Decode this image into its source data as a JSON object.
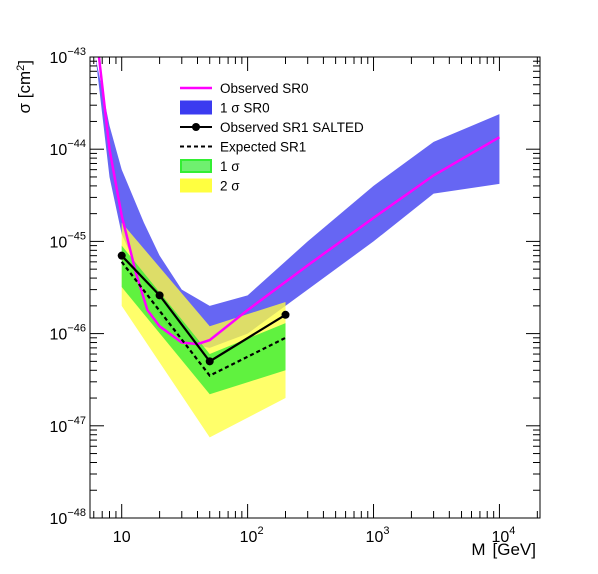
{
  "chart_data": {
    "type": "line",
    "x_scale": "log",
    "y_scale": "log",
    "xlim": [
      5.6,
      21000
    ],
    "ylim": [
      1e-48,
      1e-43
    ],
    "xlabel": "M [GeV]",
    "xlabel_parts": [
      "M",
      "[GeV]"
    ],
    "ylabel": "σ [cm²]",
    "ylabel_parts": [
      "σ [cm",
      "2",
      "]"
    ],
    "x_ticks": [
      {
        "value": 10,
        "base": "10",
        "exp": ""
      },
      {
        "value": 100,
        "base": "10",
        "exp": "2"
      },
      {
        "value": 1000,
        "base": "10",
        "exp": "3"
      },
      {
        "value": 10000,
        "base": "10",
        "exp": "4"
      }
    ],
    "y_ticks": [
      {
        "value": 1e-48,
        "base": "10",
        "exp": "−48"
      },
      {
        "value": 1e-47,
        "base": "10",
        "exp": "−47"
      },
      {
        "value": 1e-46,
        "base": "10",
        "exp": "−46"
      },
      {
        "value": 1e-45,
        "base": "10",
        "exp": "−45"
      },
      {
        "value": 1e-44,
        "base": "10",
        "exp": "−44"
      },
      {
        "value": 1e-43,
        "base": "10",
        "exp": "−43"
      }
    ],
    "series": [
      {
        "name": "1 σ SR0",
        "kind": "band",
        "color": "#3b3bf0",
        "x": [
          6.2,
          8,
          10,
          15,
          20,
          30,
          50,
          100,
          300,
          1000,
          3000,
          10000
        ],
        "lower": [
          1e-43,
          5e-45,
          1.2e-45,
          3.5e-46,
          1.5e-46,
          8e-47,
          7e-47,
          1e-46,
          3e-46,
          1e-45,
          3.3e-45,
          4.2e-45
        ],
        "upper": [
          1e-43,
          1.8e-44,
          6e-45,
          1.6e-45,
          7e-46,
          3e-46,
          2e-46,
          2.6e-46,
          1e-45,
          4e-45,
          1.2e-44,
          2.4e-44
        ]
      },
      {
        "name": "Observed SR0",
        "kind": "line",
        "color": "#ff00ff",
        "x": [
          6.6,
          8,
          10,
          13,
          16,
          20,
          30,
          40,
          50,
          100,
          300,
          1000,
          3000,
          10000
        ],
        "y": [
          1e-43,
          1e-44,
          1.9e-45,
          4.5e-46,
          1.8e-46,
          1.2e-46,
          8e-47,
          7.7e-47,
          8.5e-47,
          1.8e-46,
          5.5e-46,
          1.8e-45,
          5.2e-45,
          1.35e-44
        ]
      },
      {
        "name": "2 σ",
        "kind": "band",
        "color": "#ffff40",
        "x": [
          10,
          50,
          200
        ],
        "lower": [
          2e-46,
          7.5e-48,
          2e-47
        ],
        "upper": [
          1.6e-45,
          1.2e-46,
          2.2e-46
        ]
      },
      {
        "name": "1 σ",
        "kind": "band",
        "color": "#33ee33",
        "x": [
          10,
          50,
          200
        ],
        "lower": [
          3.2e-46,
          2.2e-47,
          4e-47
        ],
        "upper": [
          9e-46,
          6e-47,
          1.3e-46
        ]
      },
      {
        "name": "Expected SR1",
        "kind": "line",
        "dashed": true,
        "color": "#000000",
        "x": [
          10,
          50,
          200
        ],
        "y": [
          6e-46,
          3.5e-47,
          9e-47
        ]
      },
      {
        "name": "Observed SR1 SALTED",
        "kind": "line",
        "markers": true,
        "color": "#000000",
        "x": [
          10,
          20,
          50,
          200
        ],
        "y": [
          7e-46,
          2.6e-46,
          5e-47,
          1.6e-46
        ]
      }
    ],
    "legend": {
      "position": "top-center",
      "entries": [
        {
          "label": "Observed SR0",
          "style": "line",
          "color": "#ff00ff"
        },
        {
          "label": "1 σ SR0",
          "style": "fill",
          "color": "#3b3bf0"
        },
        {
          "label": "Observed SR1 SALTED",
          "style": "marker-line",
          "color": "#000000"
        },
        {
          "label": "Expected SR1",
          "style": "dashed",
          "color": "#000000"
        },
        {
          "label": "1 σ",
          "style": "fill-outline",
          "color": "#33ee33"
        },
        {
          "label": "2  σ",
          "style": "fill",
          "color": "#ffff40"
        }
      ]
    }
  }
}
